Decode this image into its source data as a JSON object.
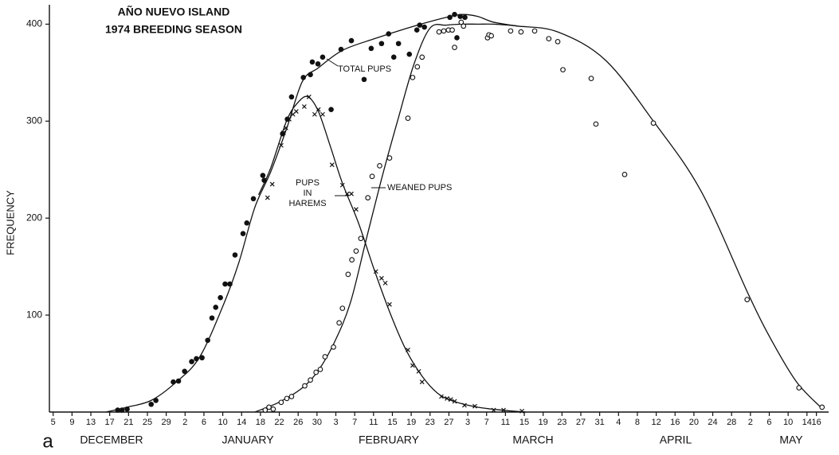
{
  "chart_data": {
    "type": "scatter",
    "title": "AÑO NUEVO ISLAND",
    "subtitle": "1974 BREEDING SEASON",
    "y_label": "FREQUENCY",
    "panel_label": "a",
    "months": [
      "DECEMBER",
      "JANUARY",
      "FEBRUARY",
      "MARCH",
      "APRIL",
      "MAY"
    ],
    "xlim": [
      4.2,
      169.6
    ],
    "ylim": [
      0,
      420
    ],
    "xticks": [
      5,
      9,
      13,
      17,
      21,
      25,
      29,
      {
        "value": 33,
        "label": "2"
      },
      {
        "value": 37,
        "label": "6"
      },
      {
        "value": 41,
        "label": "10"
      },
      {
        "value": 45,
        "label": "14"
      },
      {
        "value": 49,
        "label": "18"
      },
      {
        "value": 53,
        "label": "22"
      },
      {
        "value": 57,
        "label": "26"
      },
      {
        "value": 61,
        "label": "30"
      },
      {
        "value": 65,
        "label": "3"
      },
      {
        "value": 69,
        "label": "7"
      },
      {
        "value": 73,
        "label": "11"
      },
      {
        "value": 77,
        "label": "15"
      },
      {
        "value": 81,
        "label": "19"
      },
      {
        "value": 85,
        "label": "23"
      },
      {
        "value": 89,
        "label": "27"
      },
      {
        "value": 93,
        "label": "3"
      },
      {
        "value": 97,
        "label": "7"
      },
      {
        "value": 101,
        "label": "11"
      },
      {
        "value": 105,
        "label": "15"
      },
      {
        "value": 109,
        "label": "19"
      },
      {
        "value": 113,
        "label": "23"
      },
      {
        "value": 117,
        "label": "27"
      },
      {
        "value": 121,
        "label": "31"
      },
      {
        "value": 125,
        "label": "4"
      },
      {
        "value": 129,
        "label": "8"
      },
      {
        "value": 133,
        "label": "12"
      },
      {
        "value": 137,
        "label": "16"
      },
      {
        "value": 141,
        "label": "20"
      },
      {
        "value": 145,
        "label": "24"
      },
      {
        "value": 149,
        "label": "28"
      },
      {
        "value": 153,
        "label": "2"
      },
      {
        "value": 157,
        "label": "6"
      },
      {
        "value": 161,
        "label": "10"
      },
      {
        "value": 165,
        "label": "14"
      },
      {
        "value": 167,
        "label": "16"
      }
    ],
    "yticks": [
      100,
      200,
      300,
      400
    ],
    "series": [
      {
        "name": "TOTAL PUPS",
        "marker": "filled-circle",
        "color": "#111111",
        "x": [
          18.7,
          19.6,
          20.7,
          25.8,
          26.8,
          30.5,
          31.6,
          32.9,
          34.4,
          35.4,
          36.6,
          37.8,
          38.7,
          39.5,
          40.5,
          41.5,
          42.5,
          43.6,
          45.3,
          46.1,
          47.5,
          49.5,
          49.8,
          53.7,
          54.7,
          55.6,
          58.1,
          59.6,
          60.0,
          61.2,
          62.2,
          64.0,
          66.1,
          68.3,
          71.0,
          72.5,
          74.7,
          76.2,
          77.3,
          78.3,
          80.6,
          82.2,
          82.8,
          83.8,
          89.2,
          90.2,
          90.7,
          91.4,
          92.4
        ],
        "values": [
          2,
          2,
          3,
          8,
          12,
          31,
          32,
          42,
          52,
          55,
          56,
          74,
          97,
          108,
          118,
          132,
          132,
          162,
          184,
          195,
          220,
          244,
          239,
          287,
          302,
          325,
          345,
          348,
          361,
          359,
          366,
          312,
          374,
          383,
          343,
          375,
          380,
          390,
          366,
          380,
          369,
          394,
          399,
          397,
          407,
          410,
          386,
          408,
          407
        ],
        "curve_x": [
          16.2,
          20.7,
          25.8,
          30.9,
          36.0,
          41.0,
          44.4,
          47.8,
          51.2,
          54.6,
          57.9,
          61.3,
          66.4,
          73.2,
          81.6,
          88.4,
          91.8,
          95.1,
          98.5,
          103.6
        ],
        "curve_values": [
          0,
          5,
          12,
          30,
          56,
          109,
          154,
          211,
          248,
          293,
          341,
          355,
          373,
          385,
          398,
          407,
          410,
          408,
          402,
          398
        ]
      },
      {
        "name": "PUPS IN HAREMS",
        "marker": "cross",
        "color": "#111111",
        "x": [
          50.5,
          51.5,
          53.4,
          53.9,
          54.4,
          55.1,
          55.9,
          56.6,
          58.3,
          59.3,
          60.5,
          61.3,
          62.2,
          64.2,
          66.4,
          67.4,
          68.3,
          69.3,
          73.5,
          74.7,
          75.5,
          76.4,
          80.3,
          81.3,
          82.6,
          83.3,
          87.4,
          88.6,
          89.4,
          90.2,
          92.3,
          94.5,
          98.5,
          100.6,
          104.5
        ],
        "values": [
          221,
          235,
          275,
          288,
          293,
          302,
          307,
          310,
          315,
          325,
          307,
          312,
          307,
          255,
          234,
          225,
          225,
          209,
          145,
          138,
          133,
          111,
          64,
          48,
          42,
          31,
          16,
          14,
          13,
          11,
          7,
          6,
          2,
          2,
          1
        ],
        "curve_x": [
          48.6,
          51.2,
          54.6,
          57.1,
          59.1,
          61.3,
          63.9,
          66.4,
          69.8,
          73.2,
          76.6,
          79.9,
          83.3,
          86.7,
          90.1,
          95.1,
          100.2,
          105.3
        ],
        "curve_values": [
          224,
          252,
          301,
          320,
          325,
          310,
          273,
          236,
          195,
          146,
          101,
          64,
          37,
          19,
          11,
          5,
          2,
          0
        ]
      },
      {
        "name": "WEANED PUPS",
        "marker": "open-circle",
        "color": "#111111",
        "x": [
          50.0,
          50.8,
          51.7,
          53.4,
          54.6,
          55.6,
          58.4,
          59.6,
          60.8,
          61.7,
          62.7,
          64.5,
          65.7,
          66.4,
          67.6,
          68.4,
          69.3,
          70.3,
          71.8,
          72.7,
          74.3,
          76.4,
          80.3,
          81.3,
          82.3,
          83.3,
          86.9,
          87.9,
          88.9,
          89.7,
          90.2,
          91.6,
          92.1,
          97.2,
          97.5,
          98.0,
          102.1,
          104.3,
          107.2,
          110.2,
          112.1,
          113.2,
          119.2,
          120.2,
          126.3,
          132.4,
          152.3,
          163.3,
          168.2
        ],
        "values": [
          2,
          5,
          3,
          10,
          14,
          16,
          27,
          33,
          41,
          44,
          57,
          67,
          92,
          107,
          142,
          157,
          166,
          179,
          221,
          243,
          254,
          262,
          303,
          345,
          356,
          366,
          392,
          393,
          394,
          394,
          376,
          402,
          398,
          386,
          389,
          388,
          393,
          392,
          393,
          385,
          382,
          353,
          344,
          297,
          245,
          298,
          116,
          25,
          5
        ],
        "curve_x": [
          47.8,
          52.9,
          57.9,
          61.3,
          64.7,
          68.1,
          71.5,
          74.9,
          78.2,
          81.6,
          85.0,
          88.4,
          91.8,
          95.1,
          98.5,
          103.6,
          112.1,
          122.2,
          132.4,
          142.5,
          152.7,
          157.7,
          162.8,
          167.9
        ],
        "curve_values": [
          0,
          10,
          25,
          43,
          72,
          113,
          179,
          244,
          302,
          359,
          396,
          399,
          400,
          400,
          400,
          398,
          392,
          363,
          300,
          228,
          120,
          72,
          31,
          5
        ]
      }
    ]
  }
}
